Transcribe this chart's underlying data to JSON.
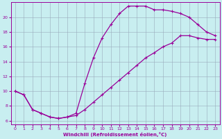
{
  "xlabel": "Windchill (Refroidissement éolien,°C)",
  "bg_color": "#c8eef0",
  "line_color": "#990099",
  "grid_color": "#99aabb",
  "xlim": [
    -0.5,
    23.5
  ],
  "ylim": [
    5.5,
    22.0
  ],
  "xticks": [
    0,
    1,
    2,
    3,
    4,
    5,
    6,
    7,
    8,
    9,
    10,
    11,
    12,
    13,
    14,
    15,
    16,
    17,
    18,
    19,
    20,
    21,
    22,
    23
  ],
  "yticks": [
    6,
    8,
    10,
    12,
    14,
    16,
    18,
    20
  ],
  "curve1_x": [
    0,
    1,
    2,
    3,
    4,
    5,
    6,
    7,
    8,
    9,
    10,
    11,
    12,
    13,
    14,
    15,
    16,
    17,
    18,
    19,
    20,
    21,
    22,
    23
  ],
  "curve1_y": [
    10.0,
    9.5,
    7.5,
    7.0,
    6.5,
    6.3,
    6.5,
    7.0,
    11.0,
    14.5,
    17.2,
    19.0,
    20.5,
    21.5,
    21.5,
    21.5,
    21.0,
    21.0,
    20.8,
    20.5,
    20.0,
    19.0,
    18.0,
    17.5
  ],
  "curve2_x": [
    0,
    1,
    2,
    3,
    4,
    5,
    6,
    7,
    8,
    9,
    10,
    11,
    12,
    13,
    14,
    15,
    16,
    17,
    18,
    19,
    20,
    21,
    22,
    23
  ],
  "curve2_y": [
    10.0,
    9.5,
    7.5,
    7.0,
    6.5,
    6.3,
    6.5,
    6.7,
    7.5,
    8.5,
    9.5,
    10.5,
    11.5,
    12.5,
    13.5,
    14.5,
    15.2,
    16.0,
    16.5,
    17.5,
    17.5,
    17.2,
    17.0,
    17.0
  ]
}
